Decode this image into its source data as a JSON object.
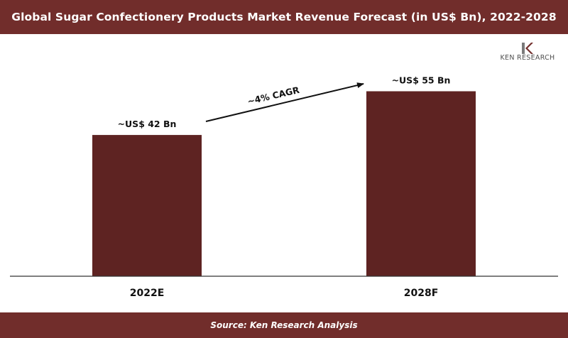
{
  "header": {
    "title": "Global Sugar Confectionery Products Market Revenue Forecast (in US$ Bn), 2022-2028"
  },
  "footer": {
    "source": "Source: Ken Research Analysis"
  },
  "logo": {
    "text": "KEN RESEARCH",
    "icon": "ken-research-logo-icon"
  },
  "colors": {
    "brand": "#712d2b",
    "bar": "#5e2322",
    "axis": "#333333"
  },
  "chart_data": {
    "type": "bar",
    "title": "Global Sugar Confectionery Products Market Revenue Forecast (in US$ Bn), 2022-2028",
    "categories": [
      "2022E",
      "2028F"
    ],
    "values": [
      42,
      55
    ],
    "data_labels": [
      "~US$ 42 Bn",
      "~US$ 55 Bn"
    ],
    "annotation": "~4% CAGR",
    "xlabel": "",
    "ylabel": "",
    "ylim": [
      0,
      72
    ],
    "grid": false,
    "legend": "none"
  }
}
